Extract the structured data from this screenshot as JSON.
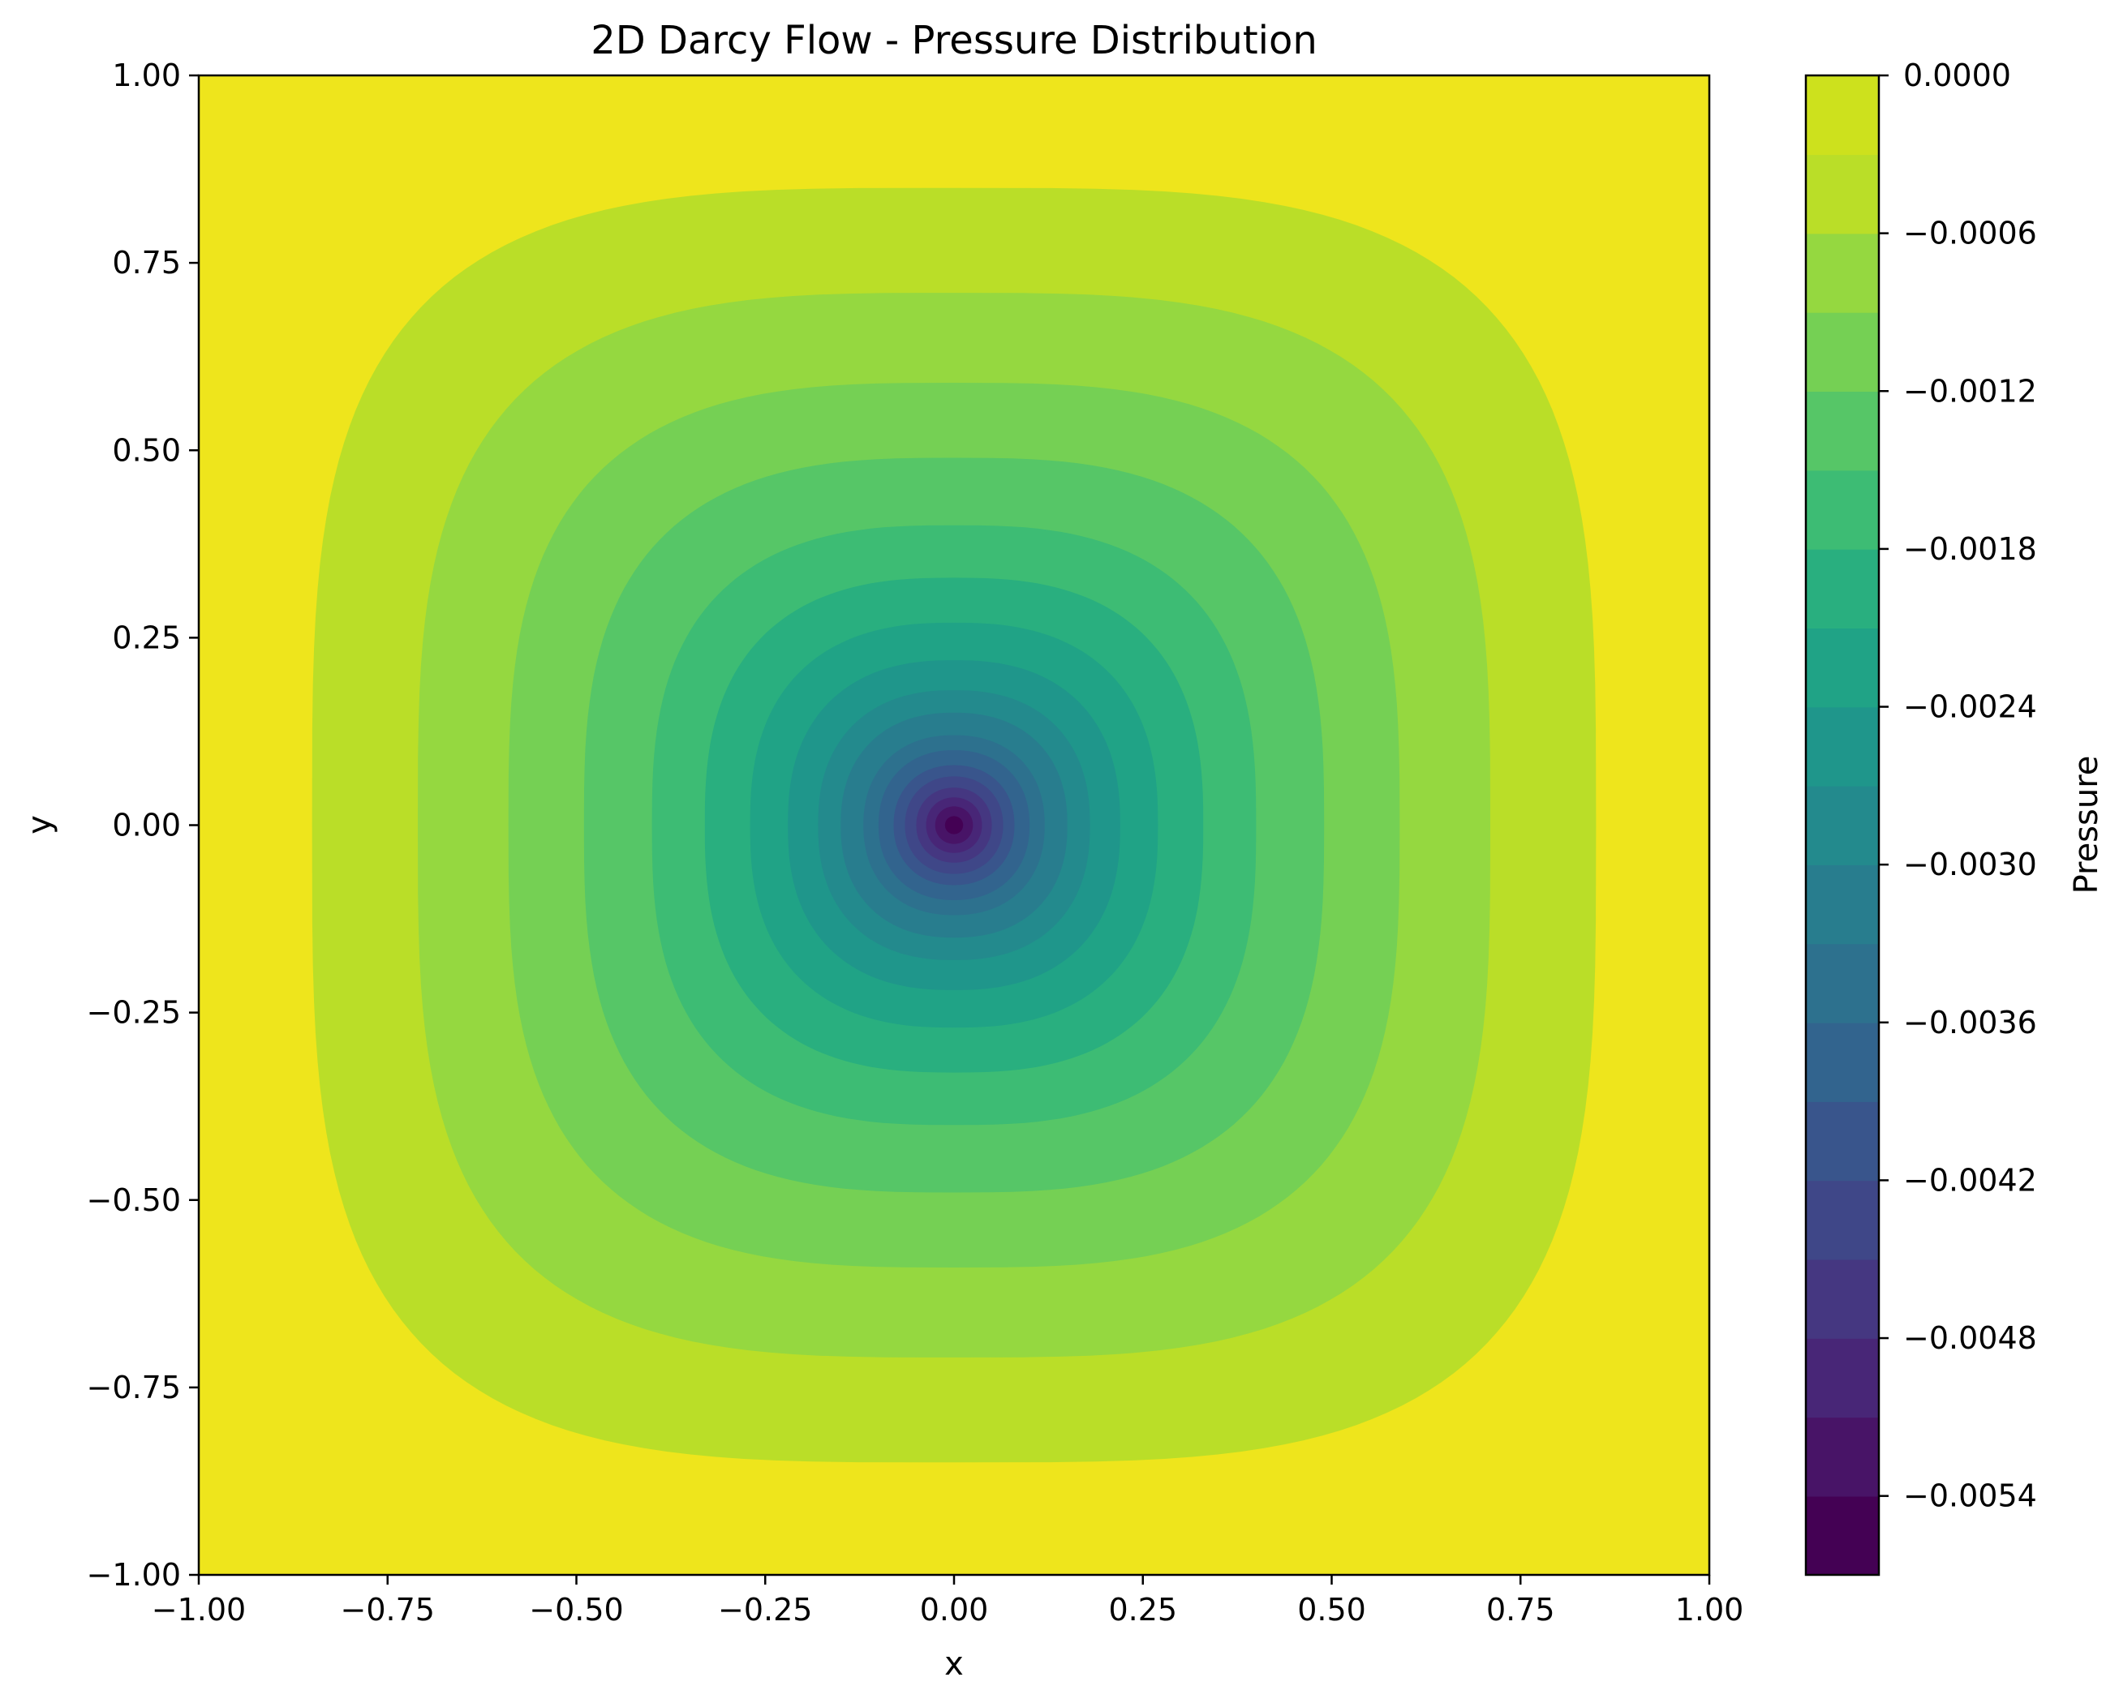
{
  "chart_data": {
    "type": "heatmap",
    "subtype": "filled-contour",
    "title": "2D Darcy Flow - Pressure Distribution",
    "xlabel": "x",
    "ylabel": "y",
    "xlim": [
      -1.0,
      1.0
    ],
    "ylim": [
      -1.0,
      1.0
    ],
    "grid": false,
    "colormap": "viridis",
    "colorbar": {
      "label": "Pressure",
      "min": -0.0057,
      "max": 0.0,
      "level_step": 0.0003,
      "ticks": [
        0.0,
        -0.0006,
        -0.0012,
        -0.0018,
        -0.0024,
        -0.003,
        -0.0036,
        -0.0042,
        -0.0048,
        -0.0054
      ],
      "tick_labels": [
        "0.0000",
        "−0.0006",
        "−0.0012",
        "−0.0018",
        "−0.0024",
        "−0.0030",
        "−0.0036",
        "−0.0042",
        "−0.0048",
        "−0.0054"
      ],
      "level_colors": [
        "#440154",
        "#481467",
        "#482677",
        "#453781",
        "#3f4788",
        "#39558c",
        "#32648e",
        "#2d718e",
        "#287d8e",
        "#238a8d",
        "#1f968b",
        "#20a386",
        "#29af7f",
        "#3dbc74",
        "#56c667",
        "#75d054",
        "#95d840",
        "#bade28",
        "#cde11d",
        "#eee51c"
      ]
    },
    "field": {
      "minimum_location": [
        0.0,
        0.0
      ],
      "minimum_value": -0.0056,
      "boundary_value": 0.0,
      "contour_half_widths_on_axis": [
        {
          "level": -0.0003,
          "half_width": 0.85
        },
        {
          "level": -0.0006,
          "half_width": 0.71
        },
        {
          "level": -0.0009,
          "half_width": 0.59
        },
        {
          "level": -0.0012,
          "half_width": 0.49
        },
        {
          "level": -0.0015,
          "half_width": 0.4
        },
        {
          "level": -0.0018,
          "half_width": 0.33
        },
        {
          "level": -0.0021,
          "half_width": 0.27
        },
        {
          "level": -0.0024,
          "half_width": 0.22
        },
        {
          "level": -0.0027,
          "half_width": 0.18
        },
        {
          "level": -0.003,
          "half_width": 0.15
        },
        {
          "level": -0.0033,
          "half_width": 0.12
        },
        {
          "level": -0.0036,
          "half_width": 0.1
        },
        {
          "level": -0.0039,
          "half_width": 0.08
        },
        {
          "level": -0.0042,
          "half_width": 0.065
        },
        {
          "level": -0.0045,
          "half_width": 0.05
        },
        {
          "level": -0.0048,
          "half_width": 0.037
        },
        {
          "level": -0.0051,
          "half_width": 0.025
        },
        {
          "level": -0.0054,
          "half_width": 0.012
        }
      ]
    },
    "x_ticks": [
      -1.0,
      -0.75,
      -0.5,
      -0.25,
      0.0,
      0.25,
      0.5,
      0.75,
      1.0
    ],
    "x_tick_labels": [
      "−1.00",
      "−0.75",
      "−0.50",
      "−0.25",
      "0.00",
      "0.25",
      "0.50",
      "0.75",
      "1.00"
    ],
    "y_ticks": [
      1.0,
      0.75,
      0.5,
      0.25,
      0.0,
      -0.25,
      -0.5,
      -0.75,
      -1.0
    ],
    "y_tick_labels": [
      "1.00",
      "0.75",
      "0.50",
      "0.25",
      "0.00",
      "−0.25",
      "−0.50",
      "−0.75",
      "−1.00"
    ]
  }
}
